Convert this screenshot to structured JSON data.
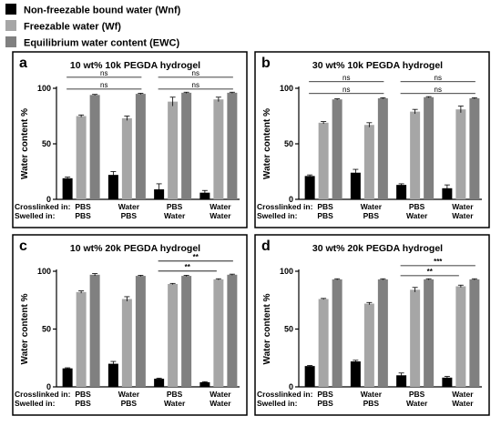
{
  "legend": [
    {
      "label": "Non-freezable bound water (Wnf)",
      "color": "#000000"
    },
    {
      "label": "Freezable water (Wf)",
      "color": "#a6a6a6"
    },
    {
      "label": "Equilibrium water content (EWC)",
      "color": "#808080"
    }
  ],
  "row_labels": {
    "crosslinked": "Crosslinked in:",
    "swelled": "Swelled in:"
  },
  "chart_data": [
    {
      "type": "bar",
      "letter": "a",
      "title": "10 wt% 10k PEGDA hydrogel",
      "ylabel": "Water content %",
      "ylim": [
        0,
        100
      ],
      "yticks": [
        0,
        50,
        100
      ],
      "groups": [
        {
          "crosslinked": "PBS",
          "swelled": "PBS"
        },
        {
          "crosslinked": "Water",
          "swelled": "PBS"
        },
        {
          "crosslinked": "PBS",
          "swelled": "Water"
        },
        {
          "crosslinked": "Water",
          "swelled": "Water"
        }
      ],
      "series": [
        {
          "name": "Non-freezable bound water (Wnf)",
          "values": [
            19,
            22,
            9,
            6
          ],
          "errors": [
            1,
            3,
            5,
            2
          ]
        },
        {
          "name": "Freezable water (Wf)",
          "values": [
            75,
            73,
            88,
            90
          ],
          "errors": [
            1,
            2,
            4,
            2
          ]
        },
        {
          "name": "Equilibrium water content (EWC)",
          "values": [
            94,
            95,
            96,
            96
          ],
          "errors": [
            0.5,
            0.5,
            0.5,
            0.5
          ]
        }
      ],
      "significance": [
        {
          "from": 0,
          "to": 2,
          "label": "ns"
        },
        {
          "from": 0,
          "to": 1,
          "label": "ns"
        },
        {
          "from": 2,
          "to": 3,
          "label": "ns"
        },
        {
          "from": 1,
          "to": 3,
          "label": "ns"
        }
      ]
    },
    {
      "type": "bar",
      "letter": "b",
      "title": "30 wt% 10k PEGDA hydrogel",
      "ylabel": "Water content %",
      "ylim": [
        0,
        100
      ],
      "yticks": [
        0,
        50,
        100
      ],
      "groups": [
        {
          "crosslinked": "PBS",
          "swelled": "PBS"
        },
        {
          "crosslinked": "Water",
          "swelled": "PBS"
        },
        {
          "crosslinked": "PBS",
          "swelled": "Water"
        },
        {
          "crosslinked": "Water",
          "swelled": "Water"
        }
      ],
      "series": [
        {
          "name": "Non-freezable bound water (Wnf)",
          "values": [
            21,
            24,
            13,
            10
          ],
          "errors": [
            1,
            3,
            1,
            3
          ]
        },
        {
          "name": "Freezable water (Wf)",
          "values": [
            69,
            67,
            79,
            81
          ],
          "errors": [
            1,
            2,
            2,
            3
          ]
        },
        {
          "name": "Equilibrium water content (EWC)",
          "values": [
            90,
            91,
            92,
            91
          ],
          "errors": [
            0.5,
            0.5,
            0.5,
            0.5
          ]
        }
      ],
      "significance": [
        {
          "from": 0,
          "to": 2,
          "label": "ns"
        },
        {
          "from": 0,
          "to": 1,
          "label": "ns"
        },
        {
          "from": 2,
          "to": 3,
          "label": "ns"
        },
        {
          "from": 1,
          "to": 3,
          "label": "ns"
        }
      ]
    },
    {
      "type": "bar",
      "letter": "c",
      "title": "10 wt% 20k PEGDA hydrogel",
      "ylabel": "Water content %",
      "ylim": [
        0,
        100
      ],
      "yticks": [
        0,
        50,
        100
      ],
      "groups": [
        {
          "crosslinked": "PBS",
          "swelled": "PBS"
        },
        {
          "crosslinked": "Water",
          "swelled": "PBS"
        },
        {
          "crosslinked": "PBS",
          "swelled": "Water"
        },
        {
          "crosslinked": "Water",
          "swelled": "Water"
        }
      ],
      "series": [
        {
          "name": "Non-freezable bound water (Wnf)",
          "values": [
            16,
            20,
            7,
            4
          ],
          "errors": [
            0.5,
            2,
            0.5,
            0.5
          ]
        },
        {
          "name": "Freezable water (Wf)",
          "values": [
            82,
            76,
            89,
            93
          ],
          "errors": [
            1,
            2,
            0.5,
            0.5
          ]
        },
        {
          "name": "Equilibrium water content (EWC)",
          "values": [
            97,
            96,
            96,
            97
          ],
          "errors": [
            1,
            0.5,
            0.5,
            0.5
          ]
        }
      ],
      "significance": [
        {
          "from": 2,
          "to": 3,
          "label": "**"
        },
        {
          "from": 2,
          "to": 3,
          "label": "**"
        }
      ]
    },
    {
      "type": "bar",
      "letter": "d",
      "title": "30 wt% 20k PEGDA hydrogel",
      "ylabel": "Water content %",
      "ylim": [
        0,
        100
      ],
      "yticks": [
        0,
        50,
        100
      ],
      "groups": [
        {
          "crosslinked": "PBS",
          "swelled": "PBS"
        },
        {
          "crosslinked": "Water",
          "swelled": "PBS"
        },
        {
          "crosslinked": "PBS",
          "swelled": "Water"
        },
        {
          "crosslinked": "Water",
          "swelled": "Water"
        }
      ],
      "series": [
        {
          "name": "Non-freezable bound water (Wnf)",
          "values": [
            18,
            22,
            10,
            8
          ],
          "errors": [
            0.5,
            1,
            2,
            1
          ]
        },
        {
          "name": "Freezable water (Wf)",
          "values": [
            76,
            72,
            84,
            87
          ],
          "errors": [
            0.5,
            1,
            2,
            1
          ]
        },
        {
          "name": "Equilibrium water content (EWC)",
          "values": [
            93,
            93,
            93,
            93
          ],
          "errors": [
            0.5,
            0.5,
            0.5,
            0.5
          ]
        }
      ],
      "significance": [
        {
          "from": 2,
          "to": 3,
          "label": "**"
        },
        {
          "from": 2,
          "to": 3,
          "label": "***"
        }
      ]
    }
  ]
}
